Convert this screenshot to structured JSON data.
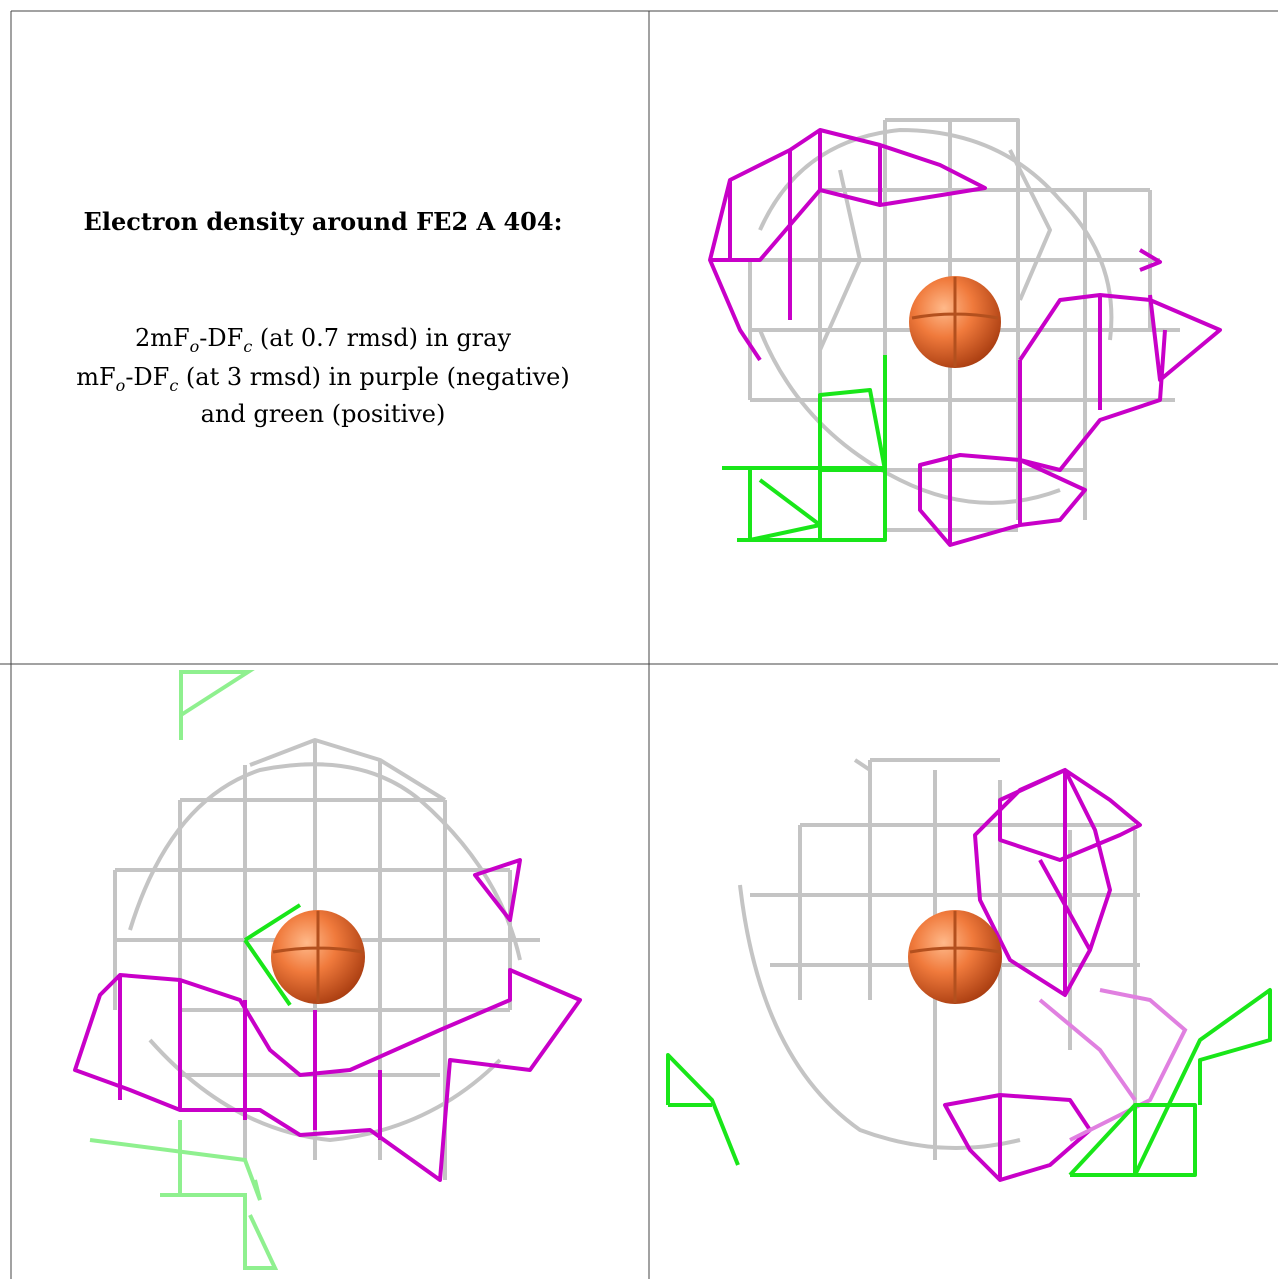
{
  "caption": {
    "title": "Electron density around FE2 A 404:",
    "lines": [
      [
        "2mF",
        {
          "subscript": "o"
        },
        "-DF",
        {
          "subscript": "c"
        },
        " (at 0.7 rmsd) in gray"
      ],
      [
        "mF",
        {
          "subscript": "o"
        },
        "-DF",
        {
          "subscript": "c"
        },
        " (at 3 rmsd) in purple (negative)"
      ],
      [
        "and green (positive)"
      ]
    ]
  }
}
